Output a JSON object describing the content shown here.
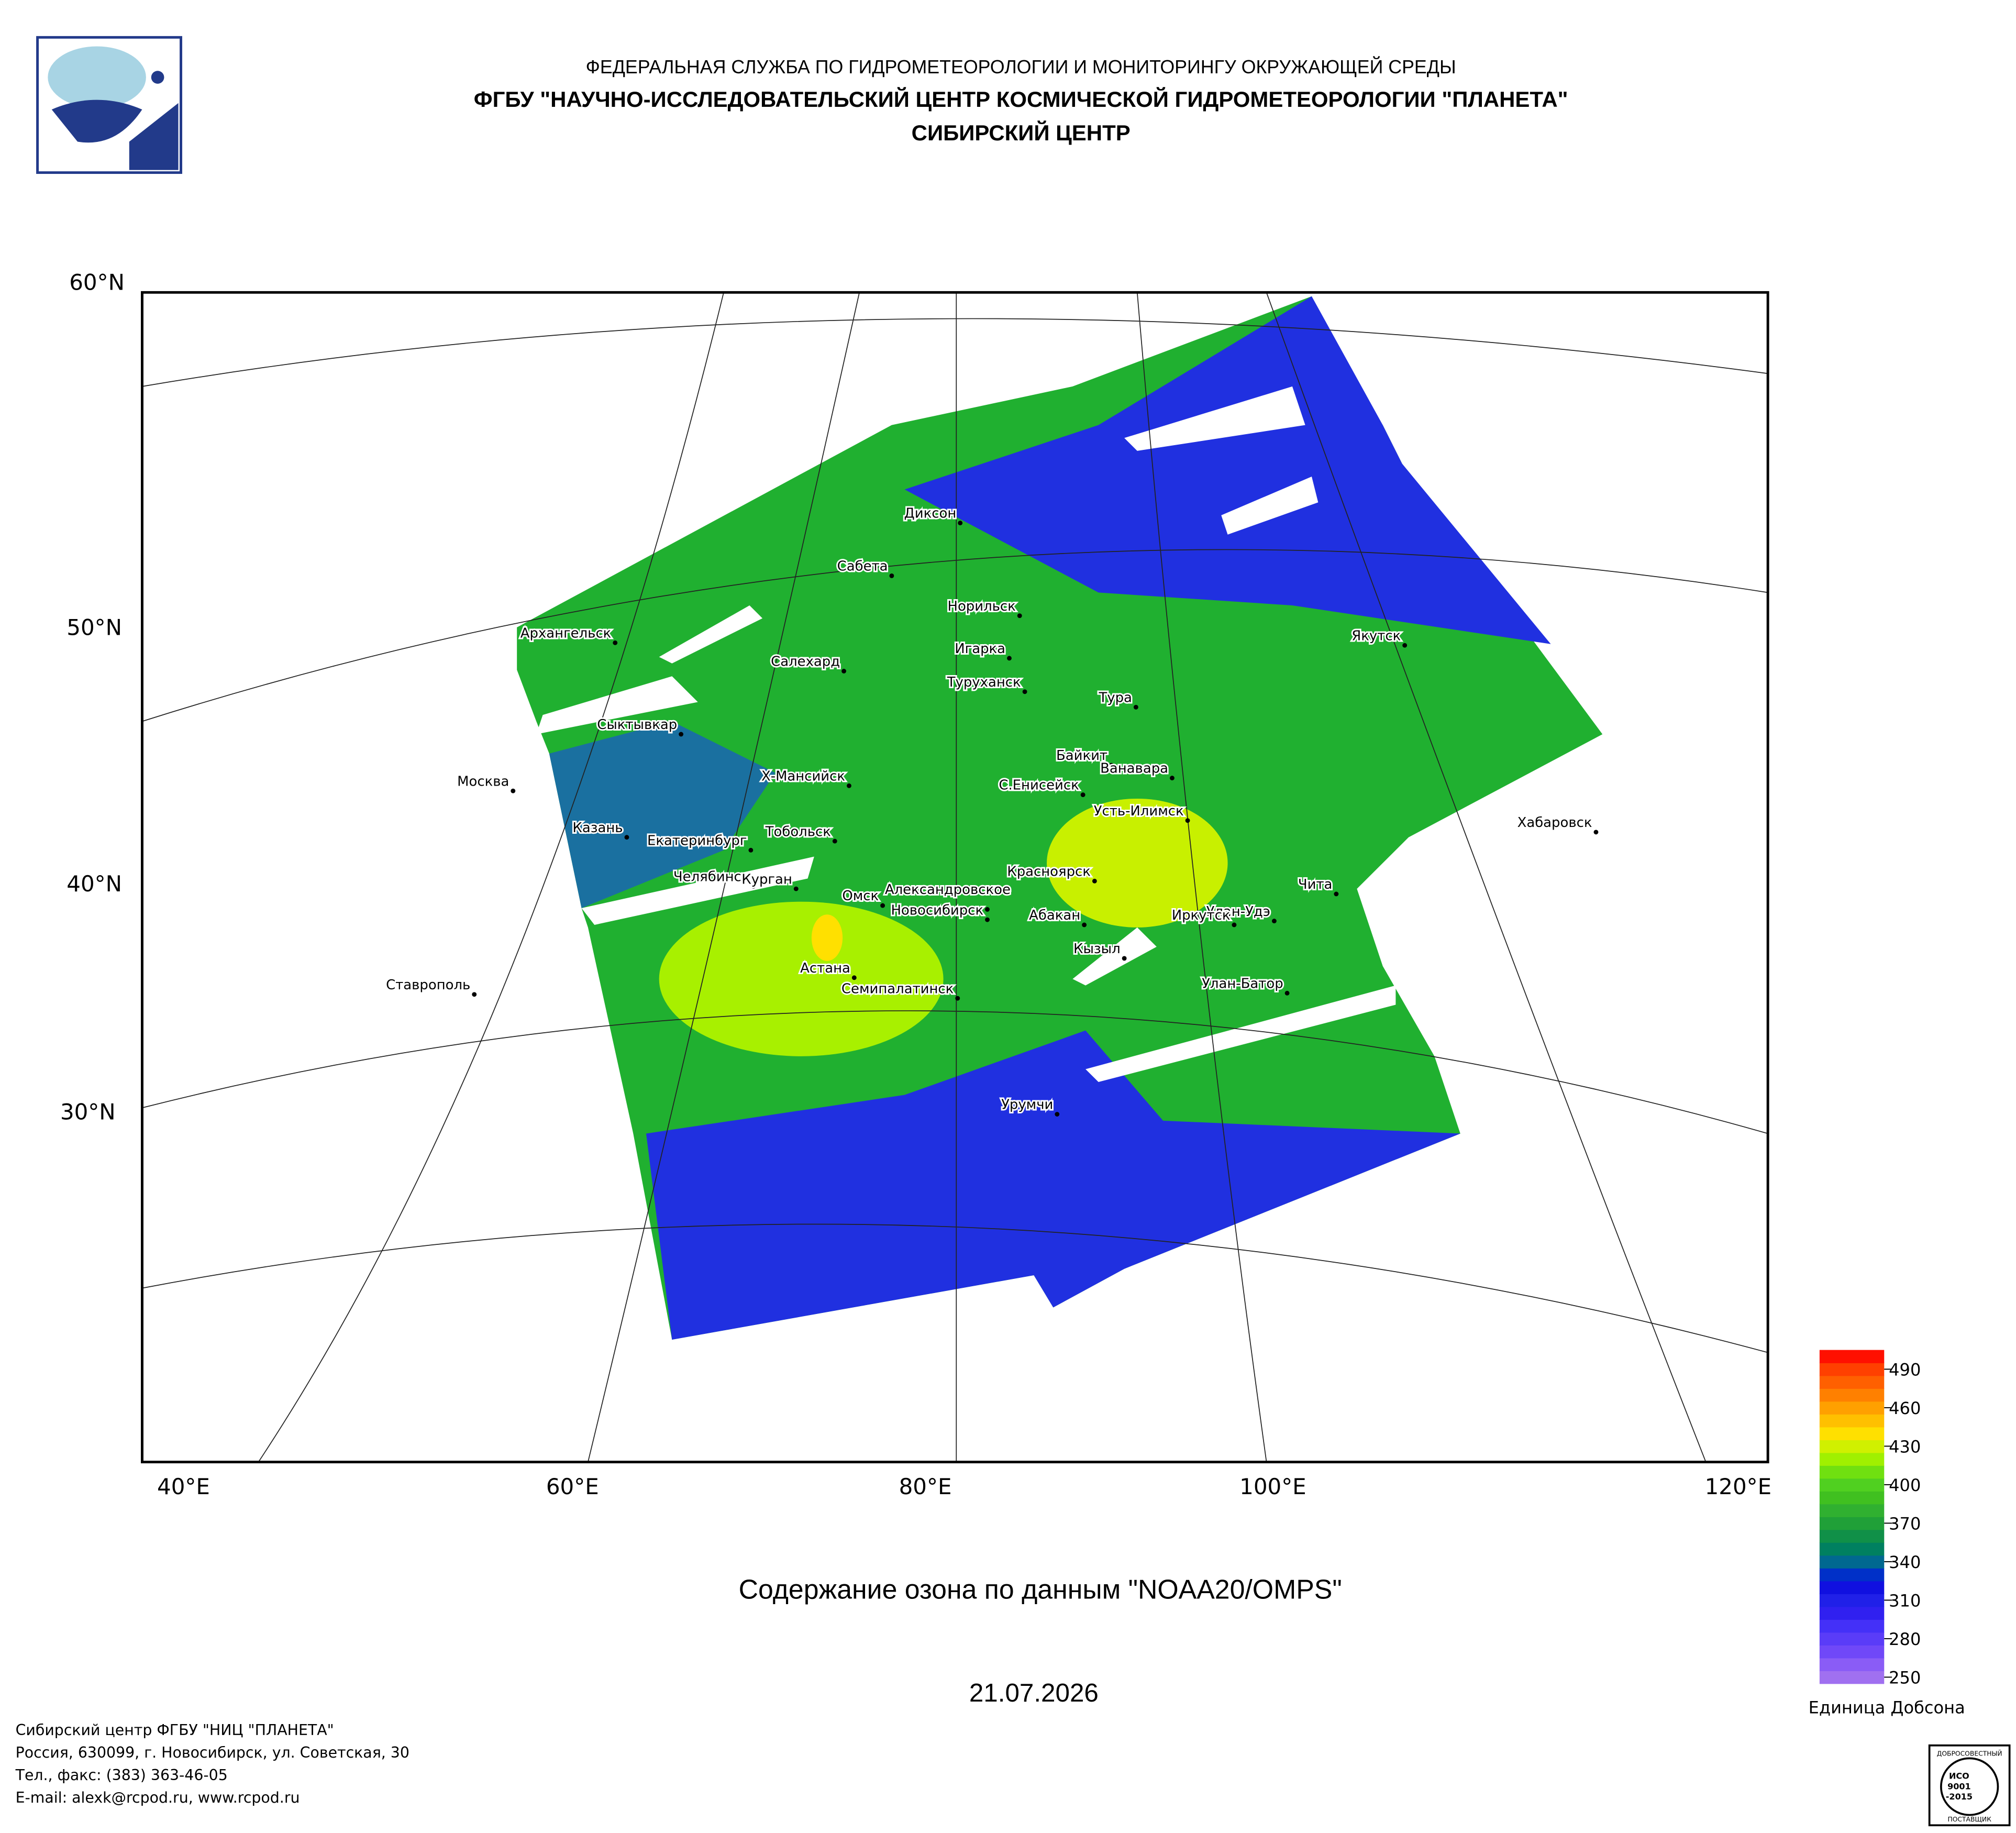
{
  "header": {
    "line1": "ФЕДЕРАЛЬНАЯ СЛУЖБА ПО ГИДРОМЕТЕОРОЛОГИИ И МОНИТОРИНГУ ОКРУЖАЮЩЕЙ СРЕДЫ",
    "line2": "ФГБУ \"НАУЧНО-ИССЛЕДОВАТЕЛЬСКИЙ ЦЕНТР КОСМИЧЕСКОЙ ГИДРОМЕТЕОРОЛОГИИ \"ПЛАНЕТА\"",
    "line3": "СИБИРСКИЙ ЦЕНТР"
  },
  "map": {
    "lat_labels": [
      "60°N",
      "50°N",
      "40°N",
      "30°N"
    ],
    "lon_labels": [
      "40°E",
      "60°E",
      "80°E",
      "100°E",
      "120°E"
    ],
    "cities": [
      "Диксон",
      "Сабета",
      "Норильск",
      "Архангельск",
      "Игарка",
      "Якутск",
      "Салехард",
      "Туруханск",
      "Тура",
      "Сыктывкар",
      "Байкит",
      "Ванавара",
      "Москва",
      "Х-Мансийск",
      "С.Енисейск",
      "Усть-Илимск",
      "Хабаровск",
      "Казань",
      "Тобольск",
      "Екатеринбург",
      "Красноярск",
      "Челябинск",
      "Чита",
      "Курган",
      "Александровское",
      "Омск",
      "Новосибирск",
      "Улан-Удэ",
      "Абакан",
      "Иркутск",
      "Кызыл",
      "Астана",
      "Улан-Батор",
      "Ставрополь",
      "Семипалатинск",
      "Урумчи"
    ]
  },
  "title": "Содержание озона по данным \"NOAA20/OMPS\"",
  "date": "21.07.2026",
  "legend": {
    "range": [
      245,
      505
    ],
    "ticks": [
      250,
      280,
      310,
      340,
      370,
      400,
      430,
      460,
      490
    ],
    "unit": "Единица Добсона",
    "colors": [
      "#a070f0",
      "#8a5cf6",
      "#7048f8",
      "#5a3cf8",
      "#4430f8",
      "#3020f0",
      "#2020e8",
      "#1010e0",
      "#0030c8",
      "#006890",
      "#008060",
      "#109048",
      "#20a038",
      "#30b030",
      "#40c020",
      "#50d020",
      "#70e010",
      "#a0f000",
      "#d0f000",
      "#ffe000",
      "#ffc000",
      "#ffa000",
      "#ff8000",
      "#ff6000",
      "#ff4000",
      "#ff1000"
    ]
  },
  "footer": [
    "Сибирский центр ФГБУ \"НИЦ \"ПЛАНЕТА\"",
    "Россия, 630099, г. Новосибирск, ул. Советская, 30",
    "Тел., факс: (383) 363-46-05",
    "E-mail: alexk@rcpod.ru, www.rcpod.ru"
  ],
  "iso": {
    "top": "ДОБРОСОВЕСТНЫЙ",
    "mid1": "ИСО",
    "mid2": "9001",
    "mid3": "-2015",
    "bottom": "ПОСТАВЩИК"
  }
}
